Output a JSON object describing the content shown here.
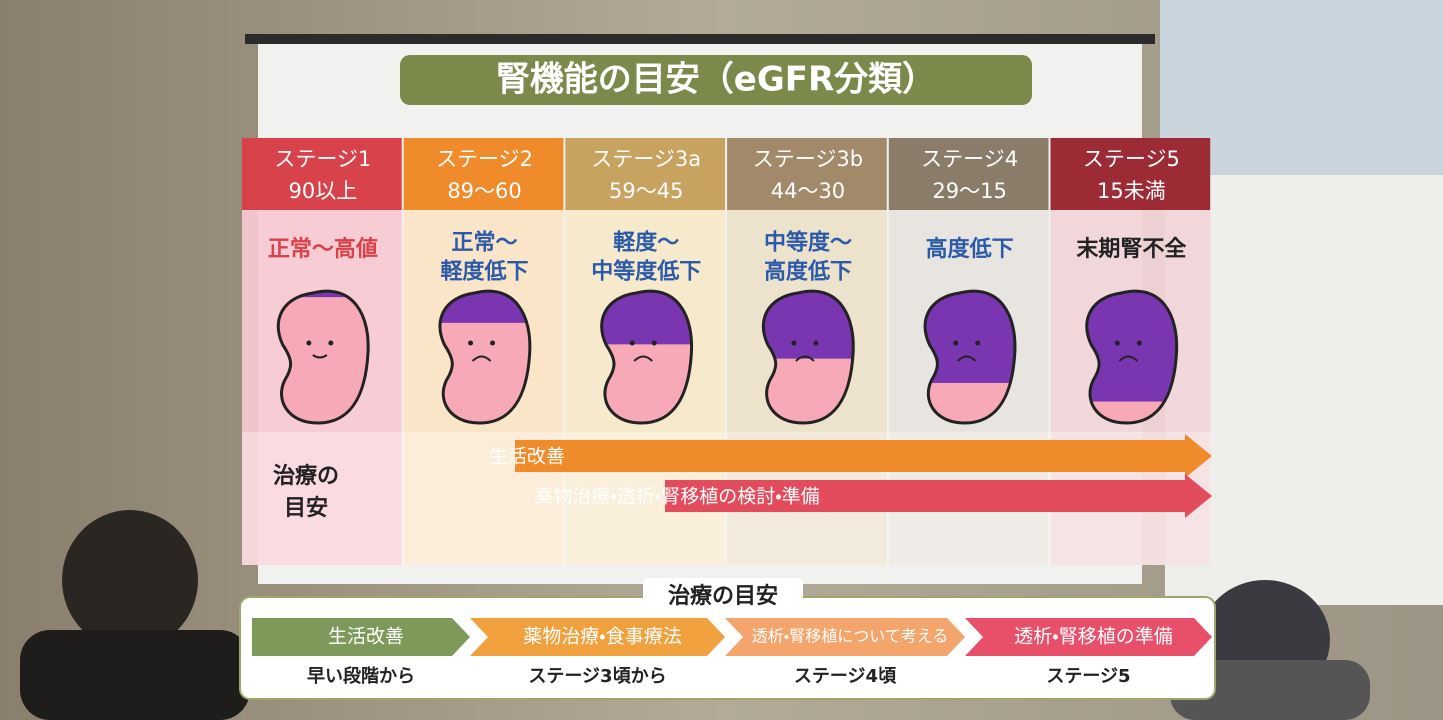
{
  "title": "腎機能の目安（eGFR分類）",
  "stages": [
    {
      "name": "ステージ1",
      "range": "90以上",
      "label": [
        "正常〜高値"
      ]
    },
    {
      "name": "ステージ2",
      "range": "89〜60",
      "label": [
        "正常〜",
        "軽度低下"
      ]
    },
    {
      "name": "ステージ3a",
      "range": "59〜45",
      "label": [
        "軽度〜",
        "中等度低下"
      ]
    },
    {
      "name": "ステージ3b",
      "range": "44〜30",
      "label": [
        "中等度〜",
        "高度低下"
      ]
    },
    {
      "name": "ステージ4",
      "range": "29〜15",
      "label": [
        "高度低下"
      ]
    },
    {
      "name": "ステージ5",
      "range": "15未満",
      "label": [
        "末期腎不全"
      ]
    }
  ],
  "treatment_label": [
    "治療の",
    "目安"
  ],
  "arrows": [
    "生活改善",
    "薬物治療・透析・腎移植の検討・準備"
  ],
  "guide": {
    "title": "治療の目安",
    "steps": [
      {
        "label": "生活改善",
        "timing": "早い段階から"
      },
      {
        "label": "薬物治療・食事療法",
        "timing": "ステージ3頃から"
      },
      {
        "label": "透析・腎移植について考える",
        "timing": "ステージ4頃"
      },
      {
        "label": "透析・腎移植の準備",
        "timing": "ステージ5"
      }
    ]
  }
}
